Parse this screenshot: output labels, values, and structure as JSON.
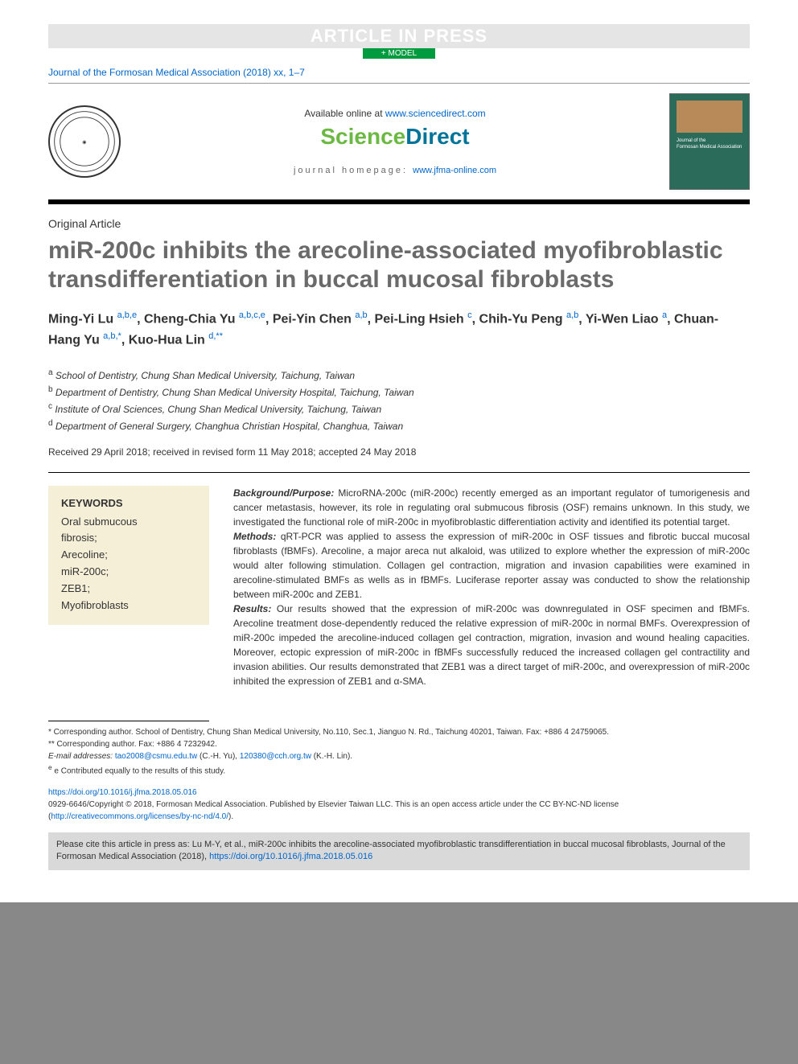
{
  "press_banner": "ARTICLE IN PRESS",
  "model_badge": "+ MODEL",
  "journal_ref": "Journal of the Formosan Medical Association (2018) xx, 1–7",
  "avail_text": "Available online at ",
  "avail_link": "www.sciencedirect.com",
  "sd_science": "Science",
  "sd_direct": "Direct",
  "journal_home_label": "journal homepage: ",
  "journal_home_link": "www.jfma-online.com",
  "cover_text": "Journal of the\nFormosan Medical Association",
  "article_type": "Original Article",
  "title": "miR-200c inhibits the arecoline-associated myofibroblastic transdifferentiation in buccal mucosal fibroblasts",
  "authors_html": "Ming-Yi Lu <sup>a,b,e</sup>, Cheng-Chia Yu <sup>a,b,c,e</sup>, Pei-Yin Chen <sup>a,b</sup>, Pei-Ling Hsieh <sup>c</sup>, Chih-Yu Peng <sup>a,b</sup>, Yi-Wen Liao <sup>a</sup>, Chuan-Hang Yu <sup>a,b,*</sup>, Kuo-Hua Lin <sup>d,**</sup>",
  "affiliations": {
    "a": "School of Dentistry, Chung Shan Medical University, Taichung, Taiwan",
    "b": "Department of Dentistry, Chung Shan Medical University Hospital, Taichung, Taiwan",
    "c": "Institute of Oral Sciences, Chung Shan Medical University, Taichung, Taiwan",
    "d": "Department of General Surgery, Changhua Christian Hospital, Changhua, Taiwan"
  },
  "dates": "Received 29 April 2018; received in revised form 11 May 2018; accepted 24 May 2018",
  "keywords_head": "KEYWORDS",
  "keywords": "Oral submucous\n  fibrosis;\nArecoline;\nmiR-200c;\nZEB1;\nMyofibroblasts",
  "abstract": {
    "background_head": "Background/Purpose:",
    "background": " MicroRNA-200c (miR-200c) recently emerged as an important regulator of tumorigenesis and cancer metastasis, however, its role in regulating oral submucous fibrosis (OSF) remains unknown. In this study, we investigated the functional role of miR-200c in myofibroblastic differentiation activity and identified its potential target.",
    "methods_head": "Methods:",
    "methods": " qRT-PCR was applied to assess the expression of miR-200c in OSF tissues and fibrotic buccal mucosal fibroblasts (fBMFs). Arecoline, a major areca nut alkaloid, was utilized to explore whether the expression of miR-200c would alter following stimulation. Collagen gel contraction, migration and invasion capabilities were examined in arecoline-stimulated BMFs as wells as in fBMFs. Luciferase reporter assay was conducted to show the relationship between miR-200c and ZEB1.",
    "results_head": "Results:",
    "results": " Our results showed that the expression of miR-200c was downregulated in OSF specimen and fBMFs. Arecoline treatment dose-dependently reduced the relative expression of miR-200c in normal BMFs. Overexpression of miR-200c impeded the arecoline-induced collagen gel contraction, migration, invasion and wound healing capacities. Moreover, ectopic expression of miR-200c in fBMFs successfully reduced the increased collagen gel contractility and invasion abilities. Our results demonstrated that ZEB1 was a direct target of miR-200c, and overexpression of miR-200c inhibited the expression of ZEB1 and α-SMA."
  },
  "footnotes": {
    "corr1": "* Corresponding author. School of Dentistry, Chung Shan Medical University, No.110, Sec.1, Jianguo N. Rd., Taichung 40201, Taiwan. Fax: +886 4 24759065.",
    "corr2": "** Corresponding author. Fax: +886 4 7232942.",
    "email_label": "E-mail addresses: ",
    "email1": "tao2008@csmu.edu.tw",
    "email1_name": " (C.-H. Yu), ",
    "email2": "120380@cch.org.tw",
    "email2_name": " (K.-H. Lin).",
    "contrib": "e Contributed equally to the results of this study."
  },
  "doi_link": "https://doi.org/10.1016/j.jfma.2018.05.016",
  "copyright": "0929-6646/Copyright © 2018, Formosan Medical Association. Published by Elsevier Taiwan LLC. This is an open access article under the CC BY-NC-ND license (",
  "cc_link": "http://creativecommons.org/licenses/by-nc-nd/4.0/",
  "copyright_end": ").",
  "cite_text": "Please cite this article in press as: Lu M-Y, et al., miR-200c inhibits the arecoline-associated myofibroblastic transdifferentiation in buccal mucosal fibroblasts, Journal of the Formosan Medical Association (2018), ",
  "cite_link": "https://doi.org/10.1016/j.jfma.2018.05.016",
  "colors": {
    "link": "#0066cc",
    "green": "#6bb843",
    "teal": "#007398",
    "keywords_bg": "#f6efd8",
    "cite_bg": "#d9d9d9",
    "title_grey": "#6a6a6a"
  }
}
